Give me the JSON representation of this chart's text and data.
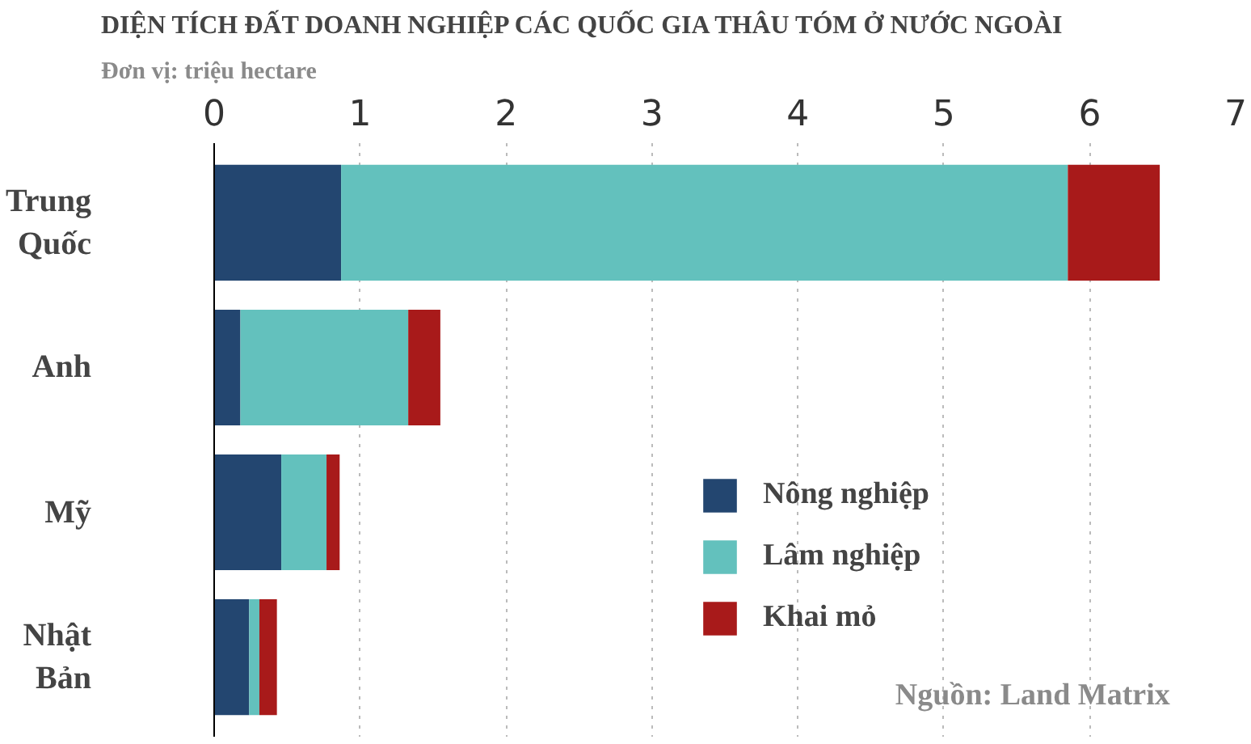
{
  "chart_data": {
    "type": "bar",
    "orientation": "horizontal",
    "stacked": true,
    "title": "DIỆN TÍCH ĐẤT DOANH NGHIỆP CÁC QUỐC GIA THÂU TÓM Ở NƯỚC NGOÀI",
    "subtitle": "Đơn vị: triệu hectare",
    "categories": [
      "Trung Quốc",
      "Anh",
      "Mỹ",
      "Nhật Bản"
    ],
    "series": [
      {
        "name": "Nông nghiệp",
        "color": "#234670",
        "values": [
          0.87,
          0.18,
          0.46,
          0.24
        ]
      },
      {
        "name": "Lâm nghiệp",
        "color": "#63c1bd",
        "values": [
          4.98,
          1.15,
          0.31,
          0.07
        ]
      },
      {
        "name": "Khai mỏ",
        "color": "#a81a1a",
        "values": [
          0.63,
          0.22,
          0.09,
          0.12
        ]
      }
    ],
    "xlim": [
      0,
      7
    ],
    "xticks": [
      0,
      1,
      2,
      3,
      4,
      5,
      6,
      7
    ],
    "grid": "x",
    "legend": "right",
    "annotations": [
      "Nguồn: Land Matrix"
    ]
  }
}
